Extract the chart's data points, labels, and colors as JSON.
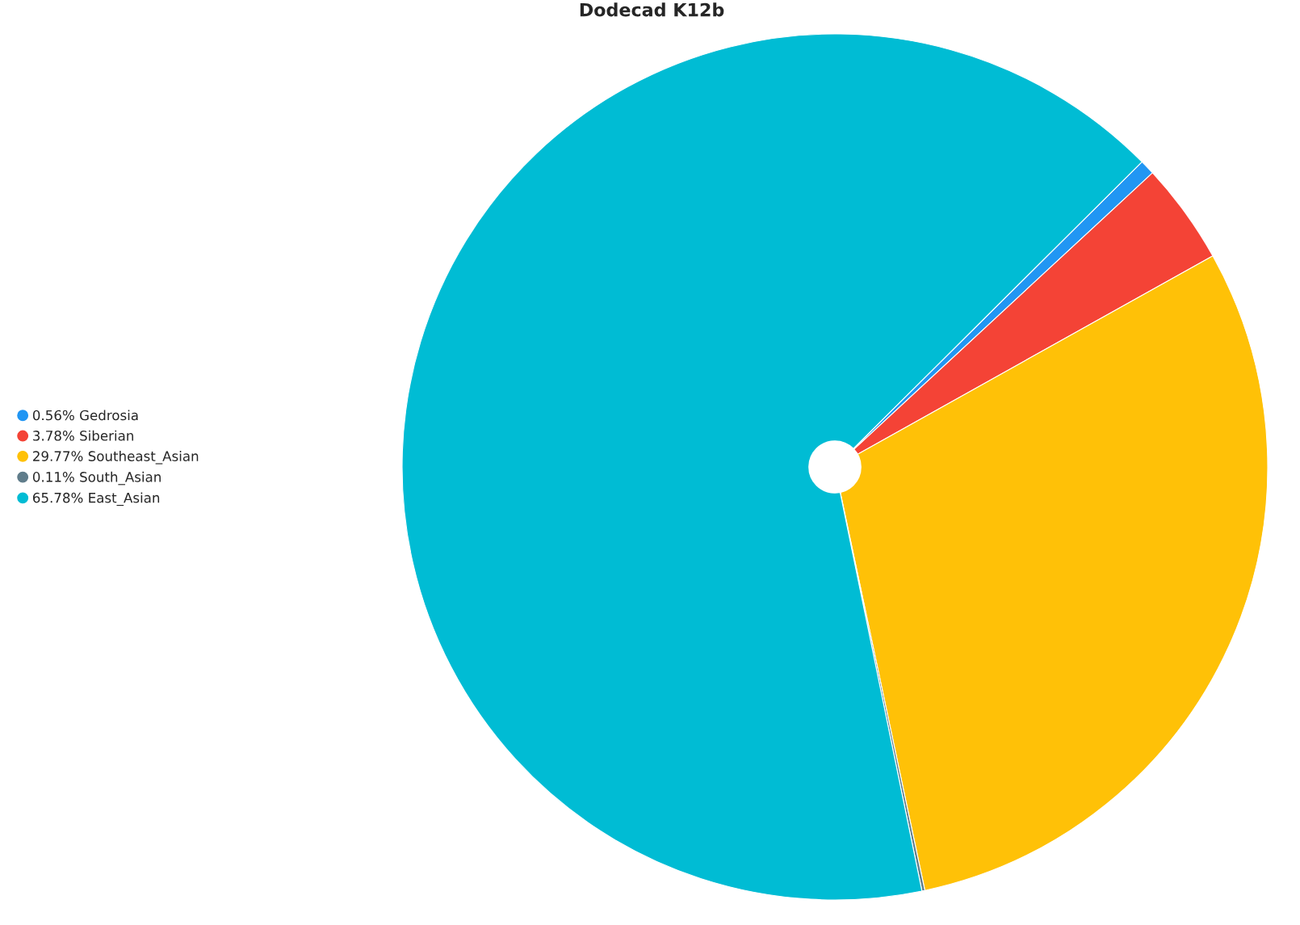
{
  "chart_data": {
    "type": "pie",
    "title": "Dodecad K12b",
    "categories": [
      "Gedrosia",
      "Siberian",
      "Southeast_Asian",
      "South_Asian",
      "East_Asian"
    ],
    "values": [
      0.56,
      3.78,
      29.77,
      0.11,
      65.78
    ],
    "value_labels": [
      "0.56%",
      "3.78%",
      "29.77%",
      "0.11%",
      "65.78%"
    ],
    "colors": [
      "#2196f3",
      "#f44336",
      "#ffc107",
      "#607d8b",
      "#00bcd4"
    ],
    "legend": "left"
  }
}
